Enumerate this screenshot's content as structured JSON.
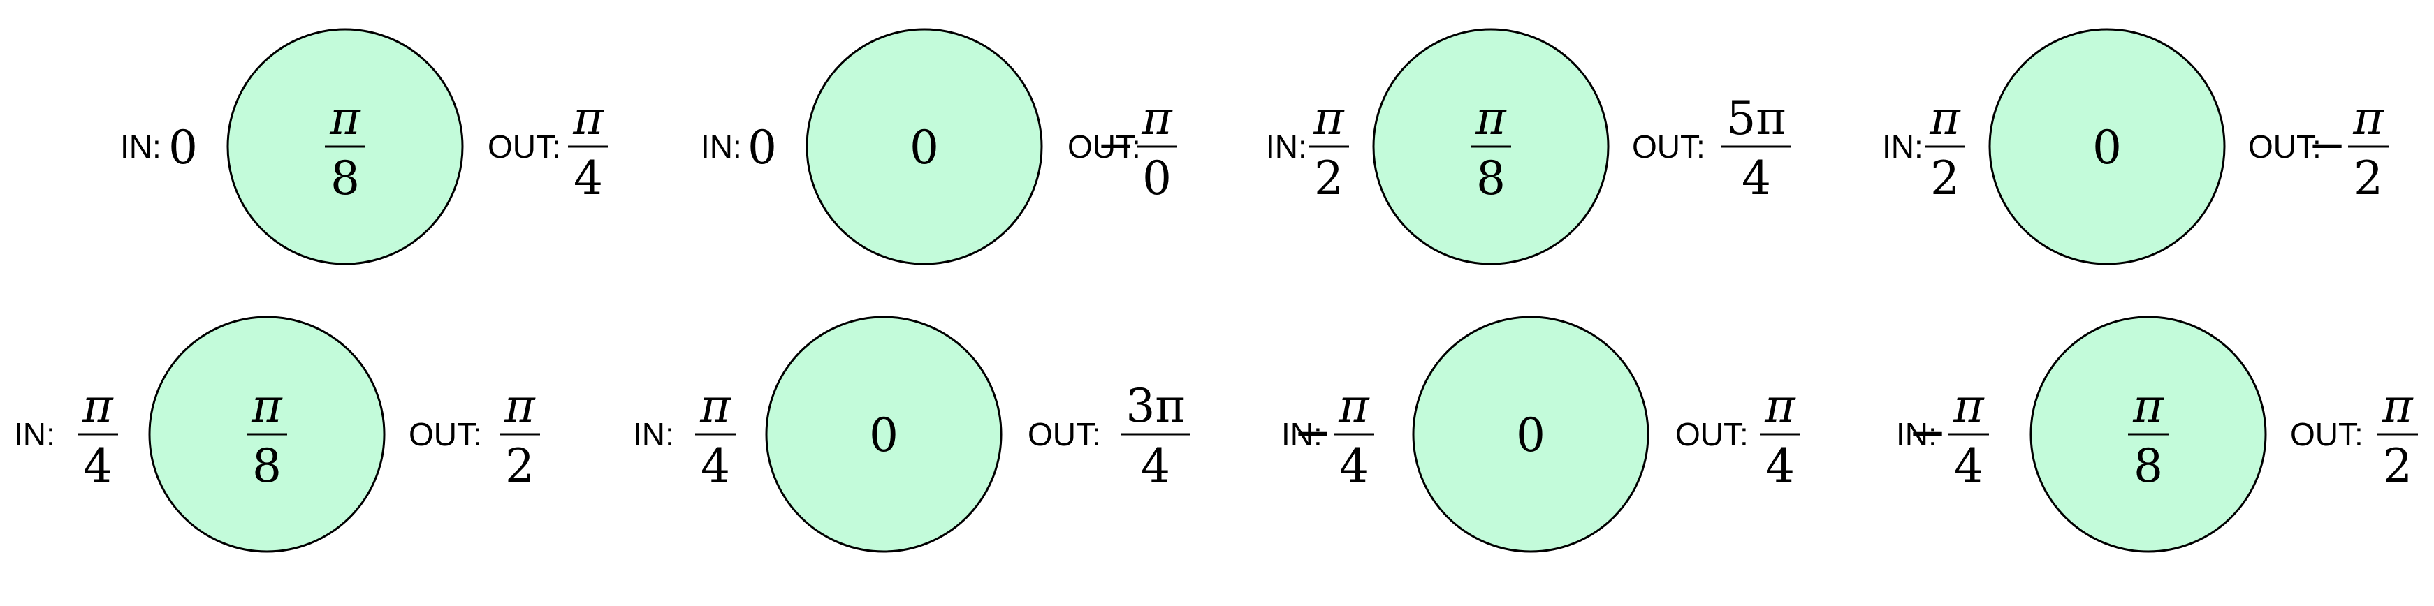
{
  "labels": {
    "in": "IN:",
    "out": "OUT:"
  },
  "colors": {
    "node_fill": "#c3fbda",
    "stroke": "#000000"
  },
  "nodes": [
    {
      "in": {
        "sign": "",
        "num": "0",
        "den": ""
      },
      "value": {
        "sign": "",
        "num": "π",
        "den": "8"
      },
      "out": {
        "sign": "",
        "num": "π",
        "den": "4"
      }
    },
    {
      "in": {
        "sign": "",
        "num": "0",
        "den": ""
      },
      "value": {
        "sign": "",
        "num": "0",
        "den": ""
      },
      "out": {
        "sign": "−",
        "num": "π",
        "den": "0"
      }
    },
    {
      "in": {
        "sign": "",
        "num": "π",
        "den": "2"
      },
      "value": {
        "sign": "",
        "num": "π",
        "den": "8"
      },
      "out": {
        "sign": "",
        "num": "5π",
        "den": "4"
      }
    },
    {
      "in": {
        "sign": "",
        "num": "π",
        "den": "2"
      },
      "value": {
        "sign": "",
        "num": "0",
        "den": ""
      },
      "out": {
        "sign": "−",
        "num": "π",
        "den": "2"
      }
    },
    {
      "in": {
        "sign": "",
        "num": "π",
        "den": "4"
      },
      "value": {
        "sign": "",
        "num": "π",
        "den": "8"
      },
      "out": {
        "sign": "",
        "num": "π",
        "den": "2"
      }
    },
    {
      "in": {
        "sign": "",
        "num": "π",
        "den": "4"
      },
      "value": {
        "sign": "",
        "num": "0",
        "den": ""
      },
      "out": {
        "sign": "",
        "num": "3π",
        "den": "4"
      }
    },
    {
      "in": {
        "sign": "−",
        "num": "π",
        "den": "4"
      },
      "value": {
        "sign": "",
        "num": "0",
        "den": ""
      },
      "out": {
        "sign": "",
        "num": "π",
        "den": "4"
      }
    },
    {
      "in": {
        "sign": "−",
        "num": "π",
        "den": "4"
      },
      "value": {
        "sign": "",
        "num": "π",
        "den": "8"
      },
      "out": {
        "sign": "",
        "num": "π",
        "den": "2"
      }
    }
  ]
}
